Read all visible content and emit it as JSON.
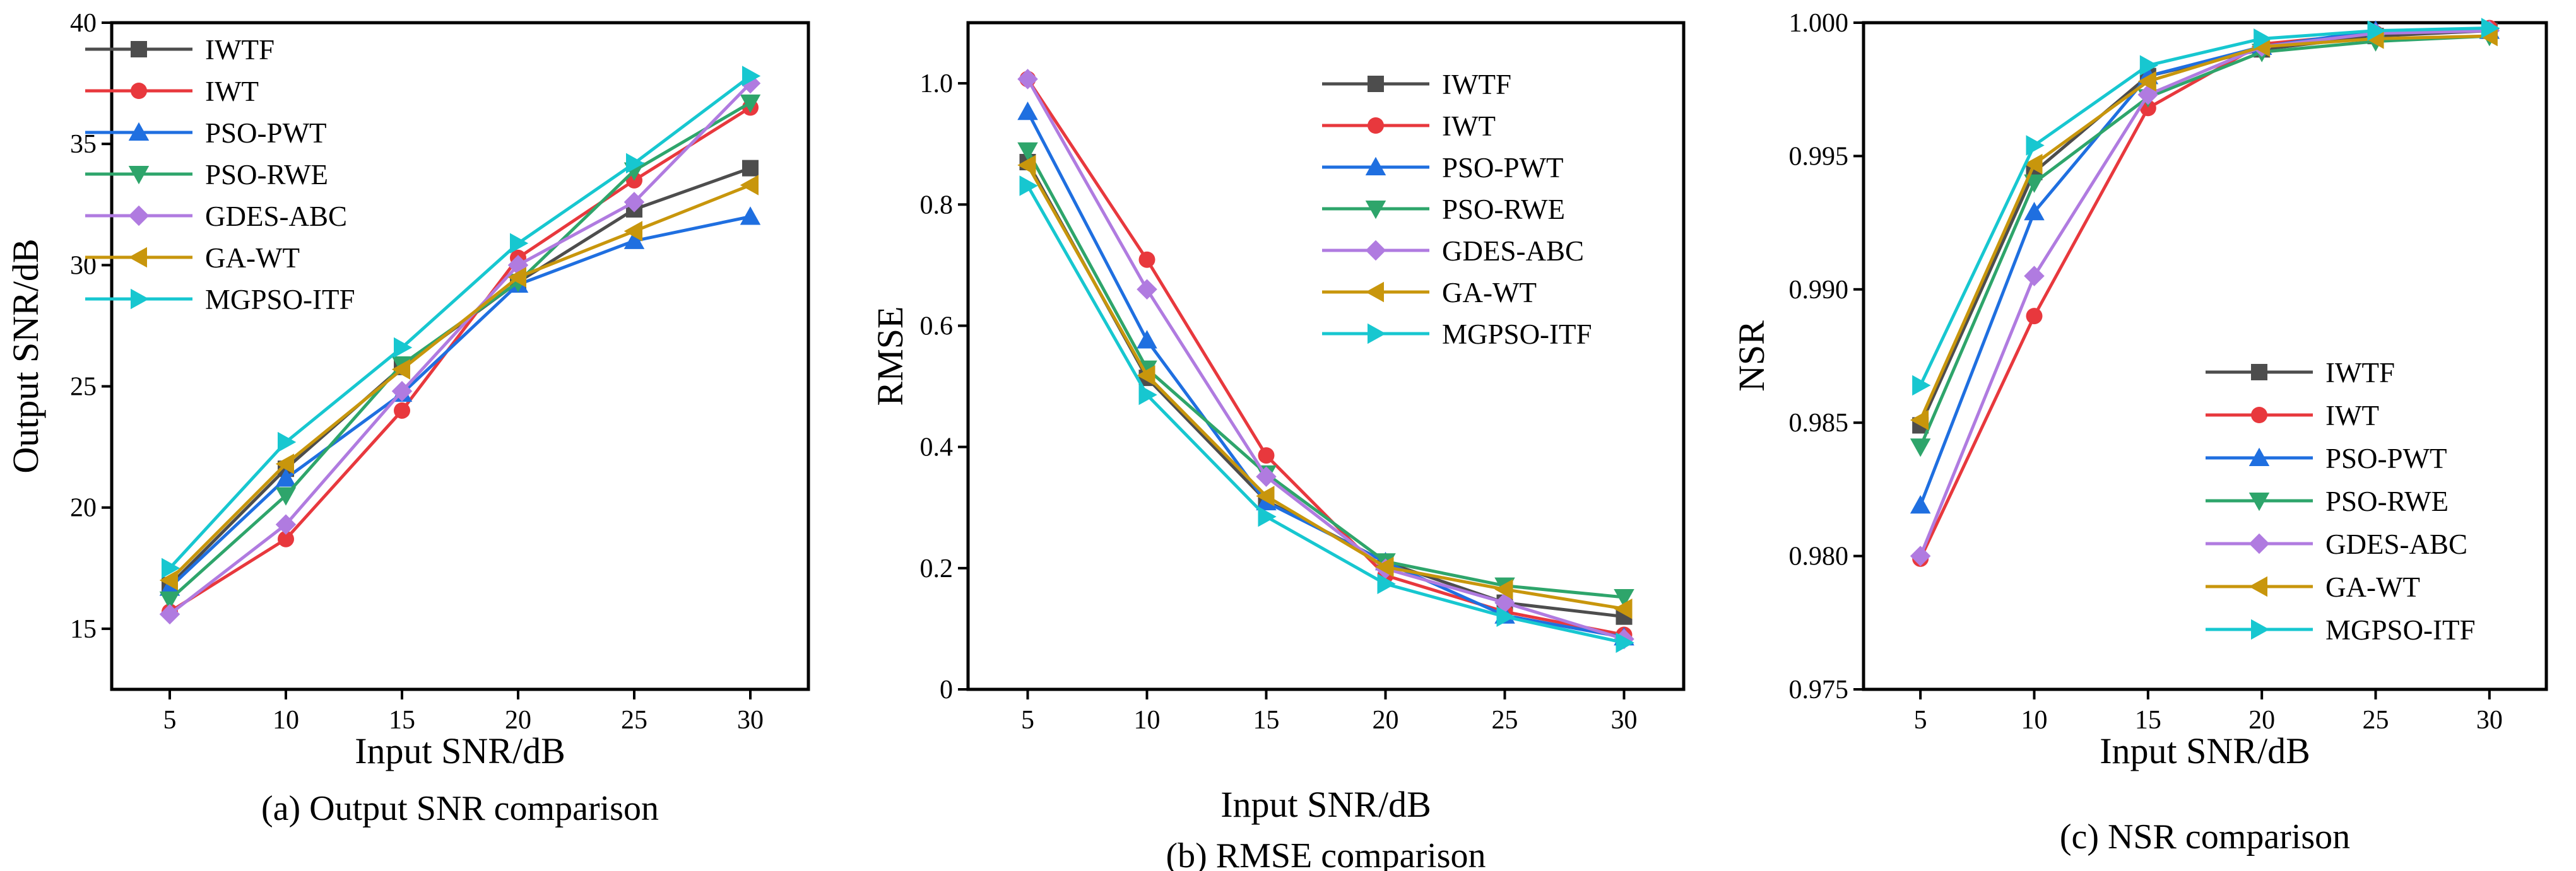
{
  "chart_data": [
    {
      "type": "line",
      "title": "(a) Output SNR comparison",
      "xlabel": "Input SNR/dB",
      "ylabel": "Output SNR/dB",
      "x": [
        5,
        10,
        15,
        20,
        25,
        30
      ],
      "xlim": [
        2.5,
        32.5
      ],
      "ylim": [
        12.5,
        40
      ],
      "yticks": [
        15,
        20,
        25,
        30,
        35,
        40
      ],
      "ytick_labels": [
        "15",
        "20",
        "25",
        "30",
        "35",
        "40"
      ],
      "xtick_labels": [
        "5",
        "10",
        "15",
        "20",
        "25",
        "30"
      ],
      "legend_position": "top-left",
      "series": [
        {
          "name": "IWTF",
          "marker": "square",
          "color": "#4d4d4d",
          "values": [
            16.8,
            21.6,
            25.8,
            29.3,
            32.3,
            34.0
          ]
        },
        {
          "name": "IWT",
          "marker": "circle",
          "color": "#e8383d",
          "values": [
            15.7,
            18.7,
            24.0,
            30.3,
            33.5,
            36.5
          ]
        },
        {
          "name": "PSO-PWT",
          "marker": "triangle-up",
          "color": "#1f6fe0",
          "values": [
            16.7,
            21.2,
            24.7,
            29.2,
            31.0,
            32.0
          ]
        },
        {
          "name": "PSO-RWE",
          "marker": "triangle-down",
          "color": "#2ea56b",
          "values": [
            16.2,
            20.5,
            25.9,
            29.3,
            33.9,
            36.7
          ]
        },
        {
          "name": "GDES-ABC",
          "marker": "diamond",
          "color": "#b07be0",
          "values": [
            15.6,
            19.3,
            24.8,
            30.0,
            32.6,
            37.5
          ]
        },
        {
          "name": "GA-WT",
          "marker": "triangle-left",
          "color": "#c8960c",
          "values": [
            17.0,
            21.8,
            25.7,
            29.5,
            31.4,
            33.3
          ]
        },
        {
          "name": " MGPSO-ITF",
          "marker": "triangle-right",
          "color": "#17c7d0",
          "values": [
            17.5,
            22.7,
            26.6,
            30.9,
            34.2,
            37.8
          ]
        }
      ]
    },
    {
      "type": "line",
      "title": "(b) RMSE  comparison",
      "xlabel": "Input  SNR/dB",
      "ylabel": "RMSE",
      "x": [
        5,
        10,
        15,
        20,
        25,
        30
      ],
      "xlim": [
        2.5,
        32.5
      ],
      "ylim": [
        0,
        1.1
      ],
      "yticks": [
        0,
        0.2,
        0.4,
        0.6,
        0.8,
        1.0
      ],
      "ytick_labels": [
        "0",
        "0.2",
        "0.4",
        "0.6",
        "0.8",
        "1.0"
      ],
      "xtick_labels": [
        "5",
        "10",
        "15",
        "20",
        "25",
        "30"
      ],
      "legend_position": "top-right",
      "series": [
        {
          "name": "IWTF",
          "marker": "square",
          "color": "#4d4d4d",
          "values": [
            0.87,
            0.514,
            0.311,
            0.21,
            0.143,
            0.12
          ]
        },
        {
          "name": "IWT",
          "marker": "circle",
          "color": "#e8383d",
          "values": [
            1.007,
            0.709,
            0.386,
            0.188,
            0.128,
            0.09
          ]
        },
        {
          "name": "PSO-PWT",
          "marker": "triangle-up",
          "color": "#1f6fe0",
          "values": [
            0.953,
            0.576,
            0.309,
            0.21,
            0.122,
            0.086
          ]
        },
        {
          "name": "PSO-RWE",
          "marker": "triangle-down",
          "color": "#2ea56b",
          "values": [
            0.889,
            0.529,
            0.356,
            0.211,
            0.171,
            0.152
          ]
        },
        {
          "name": "GDES-ABC",
          "marker": "diamond",
          "color": "#b07be0",
          "values": [
            1.007,
            0.66,
            0.351,
            0.199,
            0.143,
            0.083
          ]
        },
        {
          "name": "GA-WT",
          "marker": "triangle-left",
          "color": "#c8960c",
          "values": [
            0.865,
            0.518,
            0.319,
            0.202,
            0.165,
            0.133
          ]
        },
        {
          "name": " MGPSO-ITF",
          "marker": "triangle-right",
          "color": "#17c7d0",
          "values": [
            0.831,
            0.486,
            0.285,
            0.174,
            0.12,
            0.077
          ]
        }
      ]
    },
    {
      "type": "line",
      "title": "(c) NSR comparison",
      "xlabel": "Input SNR/dB",
      "ylabel": "NSR",
      "x": [
        5,
        10,
        15,
        20,
        25,
        30
      ],
      "xlim": [
        2.5,
        32.5
      ],
      "ylim": [
        0.975,
        1.0
      ],
      "yticks": [
        0.975,
        0.98,
        0.985,
        0.99,
        0.995,
        1.0
      ],
      "ytick_labels": [
        "0.975",
        "0.980",
        "0.985",
        "0.990",
        "0.995",
        "1.000"
      ],
      "xtick_labels": [
        "5",
        "10",
        "15",
        "20",
        "25",
        "30"
      ],
      "legend_position": "bottom-right",
      "series": [
        {
          "name": "IWTF",
          "marker": "square",
          "color": "#4d4d4d",
          "values": [
            0.9849,
            0.9944,
            0.998,
            0.999,
            0.9995,
            0.9997
          ]
        },
        {
          "name": "IWT",
          "marker": "circle",
          "color": "#e8383d",
          "values": [
            0.9799,
            0.989,
            0.9968,
            0.9992,
            0.9996,
            0.9998
          ]
        },
        {
          "name": "PSO-PWT",
          "marker": "triangle-up",
          "color": "#1f6fe0",
          "values": [
            0.9819,
            0.9929,
            0.998,
            0.9991,
            0.9997,
            0.9997
          ]
        },
        {
          "name": "PSO-RWE",
          "marker": "triangle-down",
          "color": "#2ea56b",
          "values": [
            0.9841,
            0.994,
            0.9972,
            0.9989,
            0.9993,
            0.9995
          ]
        },
        {
          "name": "GDES-ABC",
          "marker": "diamond",
          "color": "#b07be0",
          "values": [
            0.98,
            0.9905,
            0.9973,
            0.9991,
            0.9996,
            0.9997
          ]
        },
        {
          "name": "GA-WT",
          "marker": "triangle-left",
          "color": "#c8960c",
          "values": [
            0.9851,
            0.9947,
            0.9978,
            0.9991,
            0.9994,
            0.9995
          ]
        },
        {
          "name": " MGPSO-ITF",
          "marker": "triangle-right",
          "color": "#17c7d0",
          "values": [
            0.9864,
            0.9954,
            0.9984,
            0.9994,
            0.9997,
            0.9998
          ]
        }
      ]
    }
  ]
}
